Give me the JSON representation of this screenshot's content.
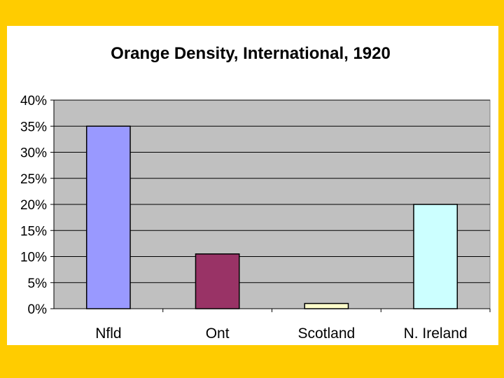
{
  "chart_data": {
    "type": "bar",
    "title": "Orange Density, International, 1920",
    "xlabel": "",
    "ylabel": "",
    "categories": [
      "Nfld",
      "Ont",
      "Scotland",
      "N. Ireland"
    ],
    "values": [
      35,
      10.5,
      1,
      20
    ],
    "ylim": [
      0,
      40
    ],
    "yticks": [
      0,
      5,
      10,
      15,
      20,
      25,
      30,
      35,
      40
    ],
    "ytick_labels": [
      "0%",
      "5%",
      "10%",
      "15%",
      "20%",
      "25%",
      "30%",
      "35%",
      "40%"
    ],
    "bar_colors": [
      "#9999FF",
      "#993366",
      "#FFFFCC",
      "#CCFFFF"
    ],
    "plot_background": "#C0C0C0",
    "grid": true,
    "legend": "none"
  },
  "colors": {
    "slide_border": "#FFCC00",
    "slide_background": "#FFFFFF"
  }
}
